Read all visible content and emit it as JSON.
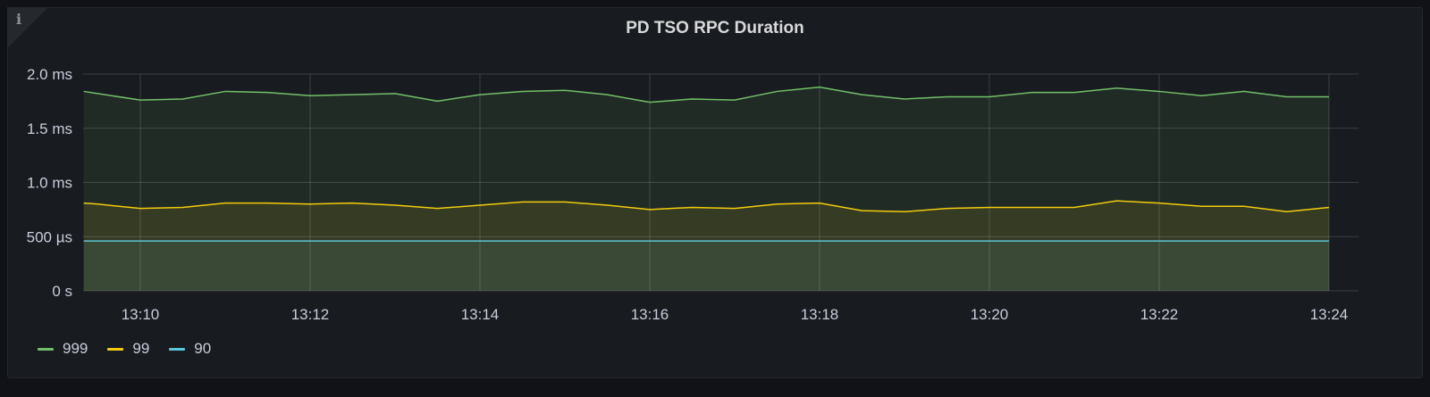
{
  "chart_data": {
    "type": "line",
    "title": "PD TSO RPC Duration",
    "xlabel": "",
    "ylabel": "",
    "ylim": [
      0,
      2.0
    ],
    "y_unit": "ms",
    "y_ticks": [
      {
        "value": 0,
        "label": "0 s"
      },
      {
        "value": 0.5,
        "label": "500 µs"
      },
      {
        "value": 1.0,
        "label": "1.0 ms"
      },
      {
        "value": 1.5,
        "label": "1.5 ms"
      },
      {
        "value": 2.0,
        "label": "2.0 ms"
      }
    ],
    "x_ticks": [
      "13:10",
      "13:12",
      "13:14",
      "13:16",
      "13:18",
      "13:20",
      "13:22",
      "13:24"
    ],
    "grid": true,
    "legend_placement": "bottom-left",
    "x": [
      "13:09:20",
      "13:09:30",
      "13:10:00",
      "13:10:30",
      "13:11:00",
      "13:11:30",
      "13:12:00",
      "13:12:30",
      "13:13:00",
      "13:13:30",
      "13:14:00",
      "13:14:30",
      "13:15:00",
      "13:15:30",
      "13:16:00",
      "13:16:30",
      "13:17:00",
      "13:17:30",
      "13:18:00",
      "13:18:30",
      "13:19:00",
      "13:19:30",
      "13:20:00",
      "13:20:30",
      "13:21:00",
      "13:21:30",
      "13:22:00",
      "13:22:30",
      "13:23:00",
      "13:23:30",
      "13:24:00"
    ],
    "series": [
      {
        "name": "999",
        "color": "#73bf69",
        "values": [
          1.84,
          1.82,
          1.76,
          1.77,
          1.84,
          1.83,
          1.8,
          1.81,
          1.82,
          1.75,
          1.81,
          1.84,
          1.85,
          1.81,
          1.74,
          1.77,
          1.76,
          1.84,
          1.88,
          1.81,
          1.77,
          1.79,
          1.79,
          1.83,
          1.83,
          1.87,
          1.84,
          1.8,
          1.84,
          1.79,
          1.79
        ]
      },
      {
        "name": "99",
        "color": "#f2cc0c",
        "values": [
          0.81,
          0.8,
          0.76,
          0.77,
          0.81,
          0.81,
          0.8,
          0.81,
          0.79,
          0.76,
          0.79,
          0.82,
          0.82,
          0.79,
          0.75,
          0.77,
          0.76,
          0.8,
          0.81,
          0.74,
          0.73,
          0.76,
          0.77,
          0.77,
          0.77,
          0.83,
          0.81,
          0.78,
          0.78,
          0.73,
          0.77
        ]
      },
      {
        "name": "90",
        "color": "#5bc5d9",
        "values": [
          0.46,
          0.46,
          0.46,
          0.46,
          0.46,
          0.46,
          0.46,
          0.46,
          0.46,
          0.46,
          0.46,
          0.46,
          0.46,
          0.46,
          0.46,
          0.46,
          0.46,
          0.46,
          0.46,
          0.46,
          0.46,
          0.46,
          0.46,
          0.46,
          0.46,
          0.46,
          0.46,
          0.46,
          0.46,
          0.46,
          0.46
        ]
      }
    ]
  }
}
